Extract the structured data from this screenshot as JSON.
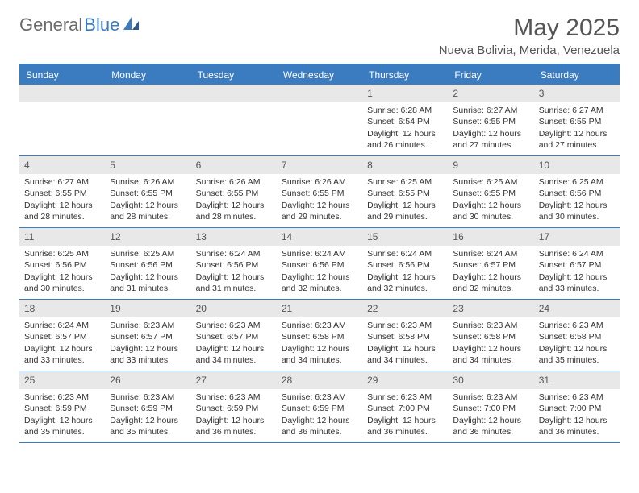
{
  "logo": {
    "text1": "General",
    "text2": "Blue"
  },
  "title": "May 2025",
  "location": "Nueva Bolivia, Merida, Venezuela",
  "header_color": "#3b7bbf",
  "daynum_bg": "#e8e8e8",
  "weekdays": [
    "Sunday",
    "Monday",
    "Tuesday",
    "Wednesday",
    "Thursday",
    "Friday",
    "Saturday"
  ],
  "weeks": [
    [
      {
        "num": "",
        "sunrise": "",
        "sunset": "",
        "daylight1": "",
        "daylight2": ""
      },
      {
        "num": "",
        "sunrise": "",
        "sunset": "",
        "daylight1": "",
        "daylight2": ""
      },
      {
        "num": "",
        "sunrise": "",
        "sunset": "",
        "daylight1": "",
        "daylight2": ""
      },
      {
        "num": "",
        "sunrise": "",
        "sunset": "",
        "daylight1": "",
        "daylight2": ""
      },
      {
        "num": "1",
        "sunrise": "Sunrise: 6:28 AM",
        "sunset": "Sunset: 6:54 PM",
        "daylight1": "Daylight: 12 hours",
        "daylight2": "and 26 minutes."
      },
      {
        "num": "2",
        "sunrise": "Sunrise: 6:27 AM",
        "sunset": "Sunset: 6:55 PM",
        "daylight1": "Daylight: 12 hours",
        "daylight2": "and 27 minutes."
      },
      {
        "num": "3",
        "sunrise": "Sunrise: 6:27 AM",
        "sunset": "Sunset: 6:55 PM",
        "daylight1": "Daylight: 12 hours",
        "daylight2": "and 27 minutes."
      }
    ],
    [
      {
        "num": "4",
        "sunrise": "Sunrise: 6:27 AM",
        "sunset": "Sunset: 6:55 PM",
        "daylight1": "Daylight: 12 hours",
        "daylight2": "and 28 minutes."
      },
      {
        "num": "5",
        "sunrise": "Sunrise: 6:26 AM",
        "sunset": "Sunset: 6:55 PM",
        "daylight1": "Daylight: 12 hours",
        "daylight2": "and 28 minutes."
      },
      {
        "num": "6",
        "sunrise": "Sunrise: 6:26 AM",
        "sunset": "Sunset: 6:55 PM",
        "daylight1": "Daylight: 12 hours",
        "daylight2": "and 28 minutes."
      },
      {
        "num": "7",
        "sunrise": "Sunrise: 6:26 AM",
        "sunset": "Sunset: 6:55 PM",
        "daylight1": "Daylight: 12 hours",
        "daylight2": "and 29 minutes."
      },
      {
        "num": "8",
        "sunrise": "Sunrise: 6:25 AM",
        "sunset": "Sunset: 6:55 PM",
        "daylight1": "Daylight: 12 hours",
        "daylight2": "and 29 minutes."
      },
      {
        "num": "9",
        "sunrise": "Sunrise: 6:25 AM",
        "sunset": "Sunset: 6:55 PM",
        "daylight1": "Daylight: 12 hours",
        "daylight2": "and 30 minutes."
      },
      {
        "num": "10",
        "sunrise": "Sunrise: 6:25 AM",
        "sunset": "Sunset: 6:56 PM",
        "daylight1": "Daylight: 12 hours",
        "daylight2": "and 30 minutes."
      }
    ],
    [
      {
        "num": "11",
        "sunrise": "Sunrise: 6:25 AM",
        "sunset": "Sunset: 6:56 PM",
        "daylight1": "Daylight: 12 hours",
        "daylight2": "and 30 minutes."
      },
      {
        "num": "12",
        "sunrise": "Sunrise: 6:25 AM",
        "sunset": "Sunset: 6:56 PM",
        "daylight1": "Daylight: 12 hours",
        "daylight2": "and 31 minutes."
      },
      {
        "num": "13",
        "sunrise": "Sunrise: 6:24 AM",
        "sunset": "Sunset: 6:56 PM",
        "daylight1": "Daylight: 12 hours",
        "daylight2": "and 31 minutes."
      },
      {
        "num": "14",
        "sunrise": "Sunrise: 6:24 AM",
        "sunset": "Sunset: 6:56 PM",
        "daylight1": "Daylight: 12 hours",
        "daylight2": "and 32 minutes."
      },
      {
        "num": "15",
        "sunrise": "Sunrise: 6:24 AM",
        "sunset": "Sunset: 6:56 PM",
        "daylight1": "Daylight: 12 hours",
        "daylight2": "and 32 minutes."
      },
      {
        "num": "16",
        "sunrise": "Sunrise: 6:24 AM",
        "sunset": "Sunset: 6:57 PM",
        "daylight1": "Daylight: 12 hours",
        "daylight2": "and 32 minutes."
      },
      {
        "num": "17",
        "sunrise": "Sunrise: 6:24 AM",
        "sunset": "Sunset: 6:57 PM",
        "daylight1": "Daylight: 12 hours",
        "daylight2": "and 33 minutes."
      }
    ],
    [
      {
        "num": "18",
        "sunrise": "Sunrise: 6:24 AM",
        "sunset": "Sunset: 6:57 PM",
        "daylight1": "Daylight: 12 hours",
        "daylight2": "and 33 minutes."
      },
      {
        "num": "19",
        "sunrise": "Sunrise: 6:23 AM",
        "sunset": "Sunset: 6:57 PM",
        "daylight1": "Daylight: 12 hours",
        "daylight2": "and 33 minutes."
      },
      {
        "num": "20",
        "sunrise": "Sunrise: 6:23 AM",
        "sunset": "Sunset: 6:57 PM",
        "daylight1": "Daylight: 12 hours",
        "daylight2": "and 34 minutes."
      },
      {
        "num": "21",
        "sunrise": "Sunrise: 6:23 AM",
        "sunset": "Sunset: 6:58 PM",
        "daylight1": "Daylight: 12 hours",
        "daylight2": "and 34 minutes."
      },
      {
        "num": "22",
        "sunrise": "Sunrise: 6:23 AM",
        "sunset": "Sunset: 6:58 PM",
        "daylight1": "Daylight: 12 hours",
        "daylight2": "and 34 minutes."
      },
      {
        "num": "23",
        "sunrise": "Sunrise: 6:23 AM",
        "sunset": "Sunset: 6:58 PM",
        "daylight1": "Daylight: 12 hours",
        "daylight2": "and 34 minutes."
      },
      {
        "num": "24",
        "sunrise": "Sunrise: 6:23 AM",
        "sunset": "Sunset: 6:58 PM",
        "daylight1": "Daylight: 12 hours",
        "daylight2": "and 35 minutes."
      }
    ],
    [
      {
        "num": "25",
        "sunrise": "Sunrise: 6:23 AM",
        "sunset": "Sunset: 6:59 PM",
        "daylight1": "Daylight: 12 hours",
        "daylight2": "and 35 minutes."
      },
      {
        "num": "26",
        "sunrise": "Sunrise: 6:23 AM",
        "sunset": "Sunset: 6:59 PM",
        "daylight1": "Daylight: 12 hours",
        "daylight2": "and 35 minutes."
      },
      {
        "num": "27",
        "sunrise": "Sunrise: 6:23 AM",
        "sunset": "Sunset: 6:59 PM",
        "daylight1": "Daylight: 12 hours",
        "daylight2": "and 36 minutes."
      },
      {
        "num": "28",
        "sunrise": "Sunrise: 6:23 AM",
        "sunset": "Sunset: 6:59 PM",
        "daylight1": "Daylight: 12 hours",
        "daylight2": "and 36 minutes."
      },
      {
        "num": "29",
        "sunrise": "Sunrise: 6:23 AM",
        "sunset": "Sunset: 7:00 PM",
        "daylight1": "Daylight: 12 hours",
        "daylight2": "and 36 minutes."
      },
      {
        "num": "30",
        "sunrise": "Sunrise: 6:23 AM",
        "sunset": "Sunset: 7:00 PM",
        "daylight1": "Daylight: 12 hours",
        "daylight2": "and 36 minutes."
      },
      {
        "num": "31",
        "sunrise": "Sunrise: 6:23 AM",
        "sunset": "Sunset: 7:00 PM",
        "daylight1": "Daylight: 12 hours",
        "daylight2": "and 36 minutes."
      }
    ]
  ]
}
